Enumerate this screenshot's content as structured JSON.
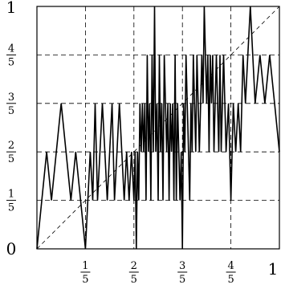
{
  "chart_data": {
    "type": "line",
    "title": "",
    "xlabel": "",
    "ylabel": "",
    "xlim": [
      0,
      1
    ],
    "ylim": [
      0,
      1
    ],
    "grid": true,
    "grid_style": "dashed",
    "x_ticks": [
      {
        "value": 0.2,
        "num": "1",
        "den": "5"
      },
      {
        "value": 0.4,
        "num": "2",
        "den": "5"
      },
      {
        "value": 0.6,
        "num": "3",
        "den": "5"
      },
      {
        "value": 0.8,
        "num": "4",
        "den": "5"
      },
      {
        "value": 1.0,
        "label": "1"
      }
    ],
    "y_ticks": [
      {
        "value": 0.0,
        "label": "0"
      },
      {
        "value": 0.2,
        "num": "1",
        "den": "5"
      },
      {
        "value": 0.4,
        "num": "2",
        "den": "5"
      },
      {
        "value": 0.6,
        "num": "3",
        "den": "5"
      },
      {
        "value": 0.8,
        "num": "4",
        "den": "5"
      },
      {
        "value": 1.0,
        "label": "1"
      }
    ],
    "reference_line": {
      "style": "dashed",
      "x": [
        0,
        1
      ],
      "y": [
        0,
        1
      ]
    },
    "series": [
      {
        "line_color": "#000000",
        "x": [
          0.0,
          0.04,
          0.06,
          0.1,
          0.14,
          0.16,
          0.18,
          0.2,
          0.21,
          0.22,
          0.23,
          0.24,
          0.25,
          0.26,
          0.27,
          0.28,
          0.29,
          0.3,
          0.31,
          0.32,
          0.33,
          0.34,
          0.35,
          0.36,
          0.37,
          0.38,
          0.39,
          0.4,
          0.405,
          0.41,
          0.415,
          0.42,
          0.425,
          0.43,
          0.435,
          0.44,
          0.445,
          0.45,
          0.455,
          0.46,
          0.465,
          0.47,
          0.475,
          0.48,
          0.485,
          0.49,
          0.495,
          0.5,
          0.505,
          0.51,
          0.515,
          0.52,
          0.525,
          0.53,
          0.535,
          0.54,
          0.545,
          0.55,
          0.555,
          0.56,
          0.565,
          0.57,
          0.575,
          0.58,
          0.585,
          0.59,
          0.595,
          0.6,
          0.605,
          0.61,
          0.615,
          0.62,
          0.625,
          0.63,
          0.635,
          0.64,
          0.645,
          0.65,
          0.655,
          0.66,
          0.665,
          0.67,
          0.675,
          0.68,
          0.685,
          0.69,
          0.695,
          0.7,
          0.705,
          0.71,
          0.715,
          0.72,
          0.725,
          0.73,
          0.735,
          0.74,
          0.745,
          0.75,
          0.755,
          0.76,
          0.77,
          0.78,
          0.79,
          0.8,
          0.81,
          0.82,
          0.83,
          0.84,
          0.85,
          0.86,
          0.87,
          0.88,
          0.9,
          0.92,
          0.94,
          0.96,
          0.98,
          1.0
        ],
        "y": [
          0.0,
          0.4,
          0.2,
          0.6,
          0.2,
          0.4,
          0.2,
          0.0,
          0.2,
          0.4,
          0.2,
          0.6,
          0.2,
          0.4,
          0.6,
          0.4,
          0.2,
          0.4,
          0.6,
          0.2,
          0.4,
          0.6,
          0.4,
          0.2,
          0.4,
          0.2,
          0.4,
          0.2,
          0.4,
          0.0,
          0.4,
          0.2,
          0.6,
          0.4,
          0.6,
          0.4,
          0.6,
          0.2,
          0.8,
          0.4,
          0.6,
          0.2,
          0.8,
          0.4,
          1.0,
          0.4,
          0.6,
          0.2,
          0.8,
          0.4,
          0.6,
          0.2,
          0.8,
          0.6,
          0.4,
          0.6,
          0.2,
          0.6,
          0.4,
          0.6,
          0.2,
          0.8,
          0.2,
          0.6,
          0.4,
          0.2,
          0.4,
          0.0,
          0.6,
          0.4,
          0.8,
          0.6,
          0.4,
          0.2,
          0.6,
          0.4,
          0.8,
          0.6,
          0.4,
          0.8,
          0.6,
          0.4,
          0.6,
          0.8,
          0.6,
          1.0,
          0.8,
          0.6,
          0.8,
          0.4,
          0.8,
          0.6,
          0.8,
          0.4,
          0.6,
          0.8,
          0.6,
          0.4,
          0.8,
          0.4,
          0.8,
          0.4,
          0.6,
          0.2,
          0.6,
          0.4,
          0.6,
          0.4,
          0.8,
          0.6,
          0.8,
          1.0,
          0.6,
          0.8,
          0.6,
          0.8,
          0.6,
          0.4
        ]
      }
    ]
  }
}
